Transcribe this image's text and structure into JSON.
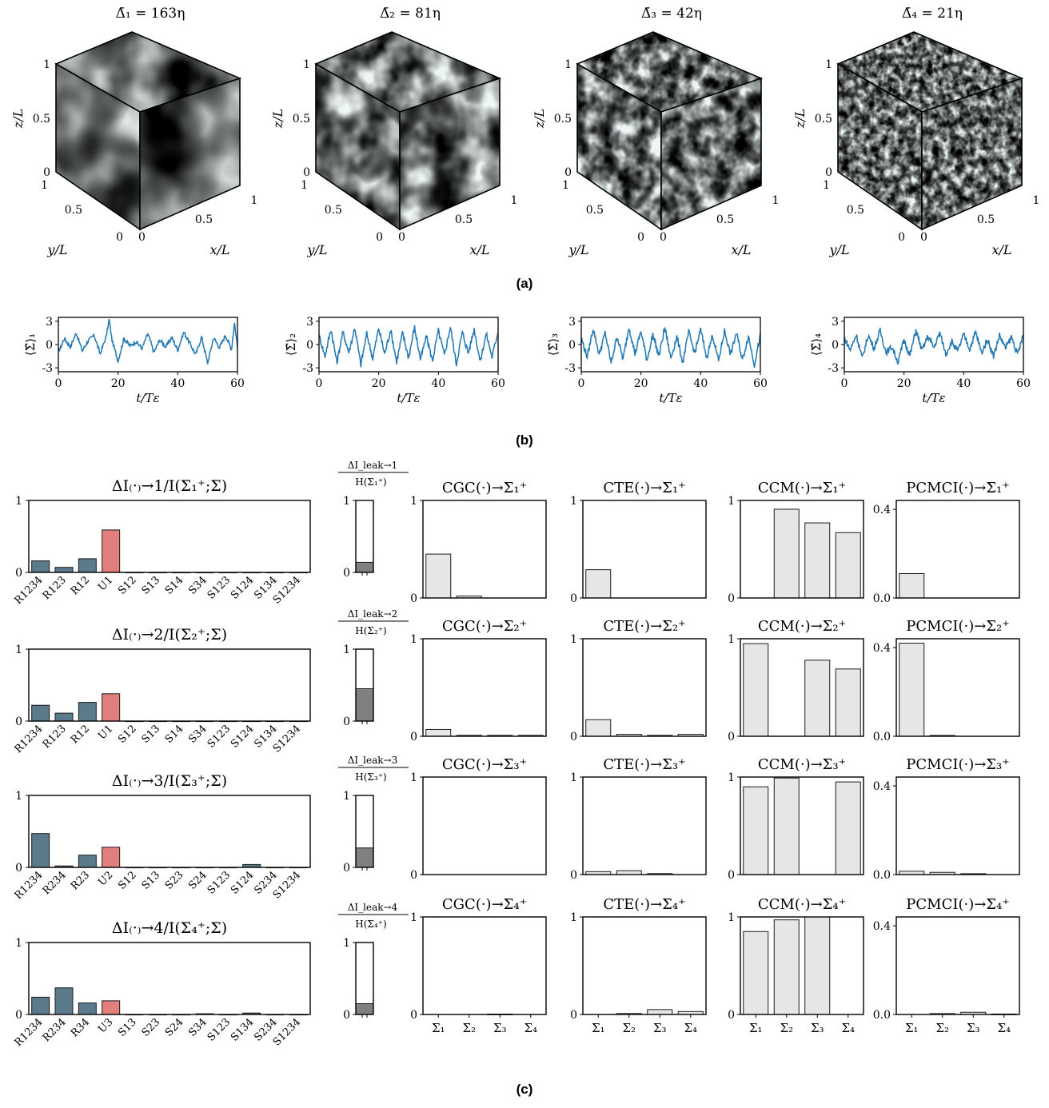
{
  "panels": {
    "a": {
      "label": "(a)",
      "cubes": [
        {
          "title": "Δ̄₁ = 163η",
          "grain": 1
        },
        {
          "title": "Δ̄₂ = 81η",
          "grain": 2
        },
        {
          "title": "Δ̄₃ = 42η",
          "grain": 3
        },
        {
          "title": "Δ̄₄ = 21η",
          "grain": 4
        }
      ],
      "z_ticks": [
        "0",
        "0.5",
        "1"
      ],
      "y_ticks": [
        "0",
        "0.5",
        "1"
      ],
      "x_ticks": [
        "0.5",
        "1"
      ],
      "z_label": "z/L",
      "y_label": "y/L",
      "x_label": "x/L",
      "colors": {
        "dark": "#1c1d2c",
        "mid": "#7a8098",
        "light": "#eef6f6"
      }
    },
    "b": {
      "label": "(b)",
      "xlabel": "t/Tε",
      "xticks": [
        "0",
        "20",
        "40",
        "60"
      ],
      "line_color": "#1f77b4",
      "series": [
        {
          "ylabel": "⟨Σ̂⟩₁",
          "yticks": [
            "-3",
            "0",
            "3"
          ],
          "smooth": 3
        },
        {
          "ylabel": "⟨Σ̂⟩₂",
          "yticks": [
            "-3",
            "0",
            "3"
          ],
          "smooth": 2
        },
        {
          "ylabel": "⟨Σ̂⟩₃",
          "yticks": [
            "-3",
            "0",
            "3"
          ],
          "smooth": 2
        },
        {
          "ylabel": "⟨Σ̂⟩₄",
          "yticks": [
            "-3",
            "0",
            "3"
          ],
          "smooth": 2
        }
      ]
    },
    "c": {
      "label": "(c)",
      "colors": {
        "redundant": "#5b7a8a",
        "unique": "#e07f7b",
        "leak": "#808080",
        "method": "#e6e6e6",
        "edge": "#1a1a1a"
      },
      "leak_titles": [
        {
          "num": "ΔI_leak→1",
          "den": "H(Σ₁⁺)"
        },
        {
          "num": "ΔI_leak→2",
          "den": "H(Σ₂⁺)"
        },
        {
          "num": "ΔI_leak→3",
          "den": "H(Σ₃⁺)"
        },
        {
          "num": "ΔI_leak→4",
          "den": "H(Σ₄⁺)"
        }
      ],
      "method_names": [
        "CGC",
        "CTE",
        "CCM",
        "PCMCI"
      ],
      "method_xticks": [
        "Σ₁",
        "Σ₂",
        "Σ₃",
        "Σ₄"
      ]
    }
  },
  "chart_data": [
    {
      "type": "line",
      "panel": "b",
      "xlabel": "t/Tε",
      "xlim": [
        0,
        60
      ],
      "ylim": [
        -3.5,
        3.5
      ],
      "series": [
        {
          "name": "⟨Σ̂⟩₁",
          "x": [
            0,
            2,
            4,
            6,
            8,
            10,
            12,
            14,
            16,
            17,
            18,
            20,
            22,
            24,
            26,
            28,
            30,
            32,
            34,
            36,
            38,
            40,
            42,
            44,
            46,
            48,
            50,
            52,
            54,
            56,
            58,
            59,
            60
          ],
          "y": [
            -1.0,
            0.8,
            -0.3,
            1.5,
            -0.8,
            0.5,
            1.2,
            -1.2,
            1.0,
            3.2,
            0.5,
            -2.1,
            0.8,
            -0.2,
            0.4,
            -0.5,
            1.4,
            -1.0,
            0.6,
            -0.3,
            0.9,
            -0.7,
            1.6,
            0.2,
            -1.3,
            1.0,
            -2.4,
            0.9,
            -0.4,
            1.2,
            -0.6,
            2.8,
            -0.3
          ]
        },
        {
          "name": "⟨Σ̂⟩₂",
          "x": [
            0,
            2,
            4,
            6,
            8,
            10,
            12,
            14,
            16,
            18,
            20,
            22,
            24,
            26,
            28,
            30,
            32,
            34,
            36,
            38,
            40,
            42,
            44,
            46,
            48,
            50,
            52,
            54,
            56,
            58,
            60
          ],
          "y": [
            1.2,
            -1.5,
            2.0,
            -2.3,
            1.6,
            -1.0,
            2.2,
            -2.6,
            1.4,
            -1.8,
            2.1,
            -1.2,
            1.9,
            -2.2,
            1.5,
            -1.7,
            2.2,
            -1.9,
            1.1,
            -2.1,
            1.8,
            -1.4,
            2.3,
            -2.5,
            1.6,
            -1.1,
            2.0,
            -2.2,
            1.4,
            -1.6,
            1.8
          ]
        },
        {
          "name": "⟨Σ̂⟩₃",
          "x": [
            0,
            2,
            4,
            6,
            8,
            10,
            12,
            14,
            16,
            18,
            20,
            22,
            24,
            26,
            28,
            30,
            32,
            34,
            36,
            38,
            40,
            42,
            44,
            46,
            48,
            50,
            52,
            54,
            56,
            58,
            60
          ],
          "y": [
            0.8,
            -1.6,
            2.1,
            -1.3,
            1.5,
            -2.4,
            1.1,
            -1.9,
            2.3,
            -1.2,
            1.7,
            -2.0,
            1.3,
            -1.5,
            2.2,
            -1.8,
            1.0,
            -2.3,
            1.6,
            -1.1,
            1.9,
            -1.7,
            1.2,
            -2.1,
            1.8,
            -1.3,
            1.5,
            -2.0,
            1.1,
            -2.6,
            1.2
          ]
        },
        {
          "name": "⟨Σ̂⟩₄",
          "x": [
            0,
            2,
            4,
            6,
            8,
            10,
            12,
            14,
            16,
            18,
            20,
            22,
            24,
            26,
            28,
            30,
            32,
            34,
            36,
            38,
            40,
            42,
            44,
            46,
            48,
            50,
            52,
            54,
            56,
            58,
            60
          ],
          "y": [
            0.9,
            -0.7,
            1.3,
            -1.8,
            1.2,
            -0.5,
            1.8,
            -1.0,
            -0.3,
            -2.3,
            0.6,
            -1.4,
            1.9,
            -0.8,
            1.1,
            -0.4,
            1.5,
            -1.2,
            0.4,
            -0.9,
            1.3,
            -0.6,
            1.6,
            -1.1,
            0.7,
            -1.5,
            1.2,
            -0.5,
            1.0,
            -1.3,
            1.2
          ]
        }
      ]
    },
    {
      "type": "bar",
      "panel": "c",
      "title": "ΔI₍·₎→1/I(Σ₁⁺;Σ)",
      "categories": [
        "R1234",
        "R123",
        "R12",
        "U1",
        "S12",
        "S13",
        "S14",
        "S34",
        "S123",
        "S124",
        "S134",
        "S1234"
      ],
      "values": [
        0.16,
        0.07,
        0.19,
        0.59,
        0,
        0,
        0,
        0,
        0,
        0,
        0,
        0
      ],
      "kinds": [
        "r",
        "r",
        "r",
        "u",
        "s",
        "s",
        "s",
        "s",
        "s",
        "s",
        "s",
        "s"
      ],
      "ylim": [
        0,
        1
      ],
      "yticks": [
        "0",
        "1"
      ],
      "leak_value": 0.14
    },
    {
      "type": "bar",
      "panel": "c",
      "title": "ΔI₍·₎→2/I(Σ₂⁺;Σ)",
      "categories": [
        "R1234",
        "R123",
        "R12",
        "U1",
        "S12",
        "S13",
        "S14",
        "S34",
        "S123",
        "S124",
        "S134",
        "S1234"
      ],
      "values": [
        0.22,
        0.11,
        0.26,
        0.38,
        0,
        0,
        0,
        0,
        0,
        0,
        0,
        0
      ],
      "kinds": [
        "r",
        "r",
        "r",
        "u",
        "s",
        "s",
        "s",
        "s",
        "s",
        "s",
        "s",
        "s"
      ],
      "ylim": [
        0,
        1
      ],
      "yticks": [
        "0",
        "1"
      ],
      "leak_value": 0.45
    },
    {
      "type": "bar",
      "panel": "c",
      "title": "ΔI₍·₎→3/I(Σ₃⁺;Σ)",
      "categories": [
        "R1234",
        "R234",
        "R23",
        "U2",
        "S12",
        "S13",
        "S23",
        "S24",
        "S123",
        "S124",
        "S234",
        "S1234"
      ],
      "values": [
        0.47,
        0.02,
        0.17,
        0.28,
        0,
        0,
        0,
        0,
        0,
        0.04,
        0,
        0
      ],
      "kinds": [
        "r",
        "r",
        "r",
        "u",
        "s",
        "s",
        "s",
        "s",
        "s",
        "s",
        "s",
        "s"
      ],
      "ylim": [
        0,
        1
      ],
      "yticks": [
        "0",
        "1"
      ],
      "leak_value": 0.27
    },
    {
      "type": "bar",
      "panel": "c",
      "title": "ΔI₍·₎→4/I(Σ₄⁺;Σ)",
      "categories": [
        "R1234",
        "R234",
        "R34",
        "U3",
        "S13",
        "S23",
        "S24",
        "S34",
        "S123",
        "S134",
        "S234",
        "S1234"
      ],
      "values": [
        0.24,
        0.37,
        0.16,
        0.19,
        0,
        0,
        0,
        0.01,
        0,
        0.02,
        0,
        0
      ],
      "kinds": [
        "r",
        "r",
        "r",
        "u",
        "s",
        "s",
        "s",
        "s",
        "s",
        "s",
        "s",
        "s"
      ],
      "ylim": [
        0,
        1
      ],
      "yticks": [
        "0",
        "1"
      ],
      "leak_value": 0.15
    },
    {
      "type": "bar",
      "panel": "c",
      "methods_grid": [
        [
          {
            "method": "CGC",
            "title": "CGC(·)→Σ₁⁺",
            "values": [
              0.45,
              0.02,
              0,
              0
            ],
            "ylim": [
              0,
              1
            ],
            "yticks": [
              "0",
              "1"
            ]
          },
          {
            "method": "CTE",
            "title": "CTE(·)→Σ₁⁺",
            "values": [
              0.29,
              0,
              0,
              0
            ],
            "ylim": [
              0,
              1
            ],
            "yticks": [
              "0",
              "1"
            ]
          },
          {
            "method": "CCM",
            "title": "CCM(·)→Σ₁⁺",
            "values": [
              0,
              0.91,
              0.77,
              0.67
            ],
            "ylim": [
              0,
              1
            ],
            "yticks": [
              "0",
              "1"
            ]
          },
          {
            "method": "PCMCI",
            "title": "PCMCI(·)→Σ₁⁺",
            "values": [
              0.11,
              0,
              0,
              0
            ],
            "ylim": [
              0,
              0.44
            ],
            "yticks": [
              "0.0",
              "0.4"
            ]
          }
        ],
        [
          {
            "method": "CGC",
            "title": "CGC(·)→Σ₂⁺",
            "values": [
              0.07,
              0.01,
              0.01,
              0.01
            ],
            "ylim": [
              0,
              1
            ],
            "yticks": [
              "0",
              "1"
            ]
          },
          {
            "method": "CTE",
            "title": "CTE(·)→Σ₂⁺",
            "values": [
              0.17,
              0.02,
              0.01,
              0.02
            ],
            "ylim": [
              0,
              1
            ],
            "yticks": [
              "0",
              "1"
            ]
          },
          {
            "method": "CCM",
            "title": "CCM(·)→Σ₂⁺",
            "values": [
              0.95,
              0,
              0.78,
              0.69
            ],
            "ylim": [
              0,
              1
            ],
            "yticks": [
              "0",
              "1"
            ]
          },
          {
            "method": "PCMCI",
            "title": "PCMCI(·)→Σ₂⁺",
            "values": [
              0.42,
              0.004,
              0,
              0
            ],
            "ylim": [
              0,
              0.44
            ],
            "yticks": [
              "0.0",
              "0.4"
            ]
          }
        ],
        [
          {
            "method": "CGC",
            "title": "CGC(·)→Σ₃⁺",
            "values": [
              0,
              0,
              0,
              0
            ],
            "ylim": [
              0,
              1
            ],
            "yticks": [
              "0",
              "1"
            ]
          },
          {
            "method": "CTE",
            "title": "CTE(·)→Σ₃⁺",
            "values": [
              0.03,
              0.04,
              0.01,
              0
            ],
            "ylim": [
              0,
              1
            ],
            "yticks": [
              "0",
              "1"
            ]
          },
          {
            "method": "CCM",
            "title": "CCM(·)→Σ₃⁺",
            "values": [
              0.9,
              0.99,
              0,
              0.95
            ],
            "ylim": [
              0,
              1
            ],
            "yticks": [
              "0",
              "1"
            ]
          },
          {
            "method": "PCMCI",
            "title": "PCMCI(·)→Σ₃⁺",
            "values": [
              0.015,
              0.01,
              0.004,
              0
            ],
            "ylim": [
              0,
              0.44
            ],
            "yticks": [
              "0.0",
              "0.4"
            ]
          }
        ],
        [
          {
            "method": "CGC",
            "title": "CGC(·)→Σ₄⁺",
            "values": [
              0,
              0,
              0.004,
              0
            ],
            "ylim": [
              0,
              1
            ],
            "yticks": [
              "0",
              "1"
            ]
          },
          {
            "method": "CTE",
            "title": "CTE(·)→Σ₄⁺",
            "values": [
              0,
              0.01,
              0.05,
              0.03
            ],
            "ylim": [
              0,
              1
            ],
            "yticks": [
              "0",
              "1"
            ]
          },
          {
            "method": "CCM",
            "title": "CCM(·)→Σ₄⁺",
            "values": [
              0.85,
              0.97,
              1.0,
              0
            ],
            "ylim": [
              0,
              1
            ],
            "yticks": [
              "0",
              "1"
            ]
          },
          {
            "method": "PCMCI",
            "title": "PCMCI(·)→Σ₄⁺",
            "values": [
              0,
              0.004,
              0.01,
              0.002
            ],
            "ylim": [
              0,
              0.44
            ],
            "yticks": [
              "0.0",
              "0.4"
            ]
          }
        ]
      ],
      "xticks": [
        "Σ₁",
        "Σ₂",
        "Σ₃",
        "Σ₄"
      ]
    }
  ]
}
